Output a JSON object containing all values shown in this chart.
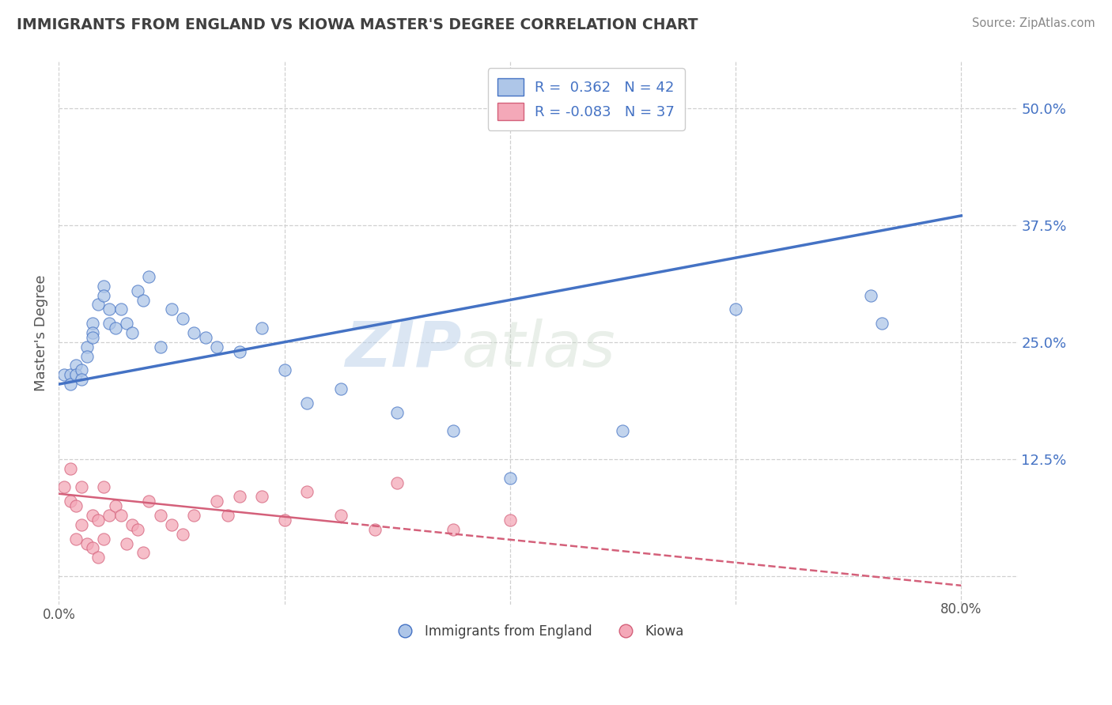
{
  "title": "IMMIGRANTS FROM ENGLAND VS KIOWA MASTER'S DEGREE CORRELATION CHART",
  "source_text": "Source: ZipAtlas.com",
  "ylabel": "Master's Degree",
  "xlim": [
    0.0,
    0.85
  ],
  "ylim": [
    -0.03,
    0.55
  ],
  "x_ticks": [
    0.0,
    0.2,
    0.4,
    0.6,
    0.8
  ],
  "y_ticks": [
    0.0,
    0.125,
    0.25,
    0.375,
    0.5
  ],
  "y_tick_labels": [
    "",
    "12.5%",
    "25.0%",
    "37.5%",
    "50.0%"
  ],
  "blue_R": 0.362,
  "blue_N": 42,
  "pink_R": -0.083,
  "pink_N": 37,
  "blue_color": "#aec6e8",
  "blue_line_color": "#4472c4",
  "pink_color": "#f4a8b8",
  "pink_line_color": "#d4607a",
  "legend_label_blue": "Immigrants from England",
  "legend_label_pink": "Kiowa",
  "watermark_zip": "ZIP",
  "watermark_atlas": "atlas",
  "blue_scatter_x": [
    0.005,
    0.01,
    0.01,
    0.015,
    0.015,
    0.02,
    0.02,
    0.025,
    0.025,
    0.03,
    0.03,
    0.03,
    0.035,
    0.04,
    0.04,
    0.045,
    0.045,
    0.05,
    0.055,
    0.06,
    0.065,
    0.07,
    0.075,
    0.08,
    0.09,
    0.1,
    0.11,
    0.12,
    0.13,
    0.14,
    0.16,
    0.18,
    0.2,
    0.22,
    0.25,
    0.3,
    0.35,
    0.4,
    0.5,
    0.6,
    0.72,
    0.73
  ],
  "blue_scatter_y": [
    0.215,
    0.215,
    0.205,
    0.225,
    0.215,
    0.22,
    0.21,
    0.245,
    0.235,
    0.27,
    0.26,
    0.255,
    0.29,
    0.31,
    0.3,
    0.285,
    0.27,
    0.265,
    0.285,
    0.27,
    0.26,
    0.305,
    0.295,
    0.32,
    0.245,
    0.285,
    0.275,
    0.26,
    0.255,
    0.245,
    0.24,
    0.265,
    0.22,
    0.185,
    0.2,
    0.175,
    0.155,
    0.105,
    0.155,
    0.285,
    0.3,
    0.27
  ],
  "pink_scatter_x": [
    0.005,
    0.01,
    0.01,
    0.015,
    0.015,
    0.02,
    0.02,
    0.025,
    0.03,
    0.03,
    0.035,
    0.035,
    0.04,
    0.04,
    0.045,
    0.05,
    0.055,
    0.06,
    0.065,
    0.07,
    0.075,
    0.08,
    0.09,
    0.1,
    0.11,
    0.12,
    0.14,
    0.15,
    0.16,
    0.18,
    0.2,
    0.22,
    0.25,
    0.28,
    0.3,
    0.35,
    0.4
  ],
  "pink_scatter_y": [
    0.095,
    0.115,
    0.08,
    0.075,
    0.04,
    0.095,
    0.055,
    0.035,
    0.065,
    0.03,
    0.06,
    0.02,
    0.095,
    0.04,
    0.065,
    0.075,
    0.065,
    0.035,
    0.055,
    0.05,
    0.025,
    0.08,
    0.065,
    0.055,
    0.045,
    0.065,
    0.08,
    0.065,
    0.085,
    0.085,
    0.06,
    0.09,
    0.065,
    0.05,
    0.1,
    0.05,
    0.06
  ],
  "background_color": "#ffffff",
  "grid_color": "#d0d0d0",
  "title_color": "#404040",
  "axis_label_color": "#555555",
  "tick_label_color_right": "#4472c4",
  "scatter_size": 120,
  "blue_line_start_y": 0.205,
  "blue_line_end_y": 0.385,
  "pink_line_start_y": 0.088,
  "pink_line_end_y": -0.01
}
